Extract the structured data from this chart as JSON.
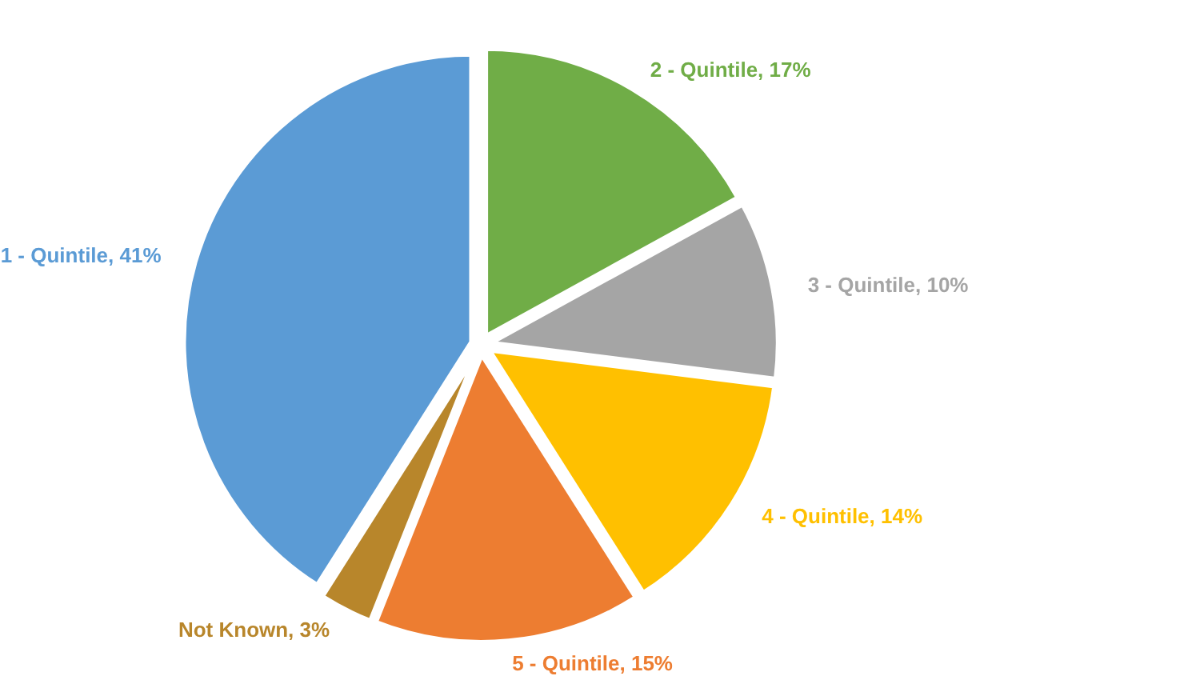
{
  "chart_data": {
    "type": "pie",
    "categories": [
      "2 - Quintile",
      "3 - Quintile",
      "4 - Quintile",
      "5 - Quintile",
      "Not Known",
      "1 - Quintile"
    ],
    "values": [
      17,
      10,
      14,
      15,
      3,
      41
    ],
    "value_labels": [
      "17%",
      "10%",
      "14%",
      "15%",
      "3%",
      "41%"
    ],
    "colors": [
      "#70ad47",
      "#a5a5a5",
      "#ffc000",
      "#ed7d31",
      "#b8862b",
      "#5b9bd5"
    ]
  }
}
